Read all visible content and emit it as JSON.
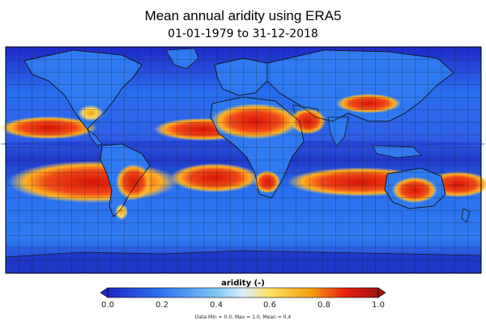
{
  "title": "Mean annual aridity using ERA5",
  "subtitle": "01-01-1979 to 31-12-2018",
  "colorbar": {
    "label": "aridity (-)",
    "ticks": [
      "0.0",
      "0.2",
      "0.4",
      "0.6",
      "0.8",
      "1.0"
    ],
    "range": [
      0.0,
      1.0
    ],
    "colors": [
      "#1f28c8",
      "#2f74f0",
      "#7ec5f5",
      "#d8f0ff",
      "#ffe060",
      "#f5a010",
      "#e82010",
      "#a01010"
    ]
  },
  "stats": "Data Min = 0.0, Max = 1.0, Mean = 0.4"
}
